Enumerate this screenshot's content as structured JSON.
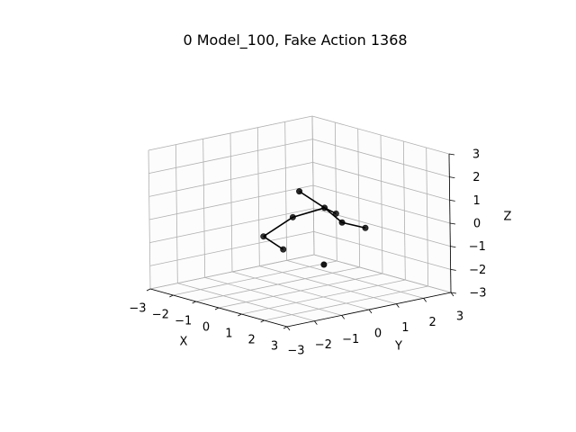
{
  "chart_data": {
    "type": "scatter",
    "title": "0 Model_100, Fake Action 1368",
    "xlabel": "X",
    "ylabel": "Y",
    "zlabel": "Z",
    "xlim": [
      -3,
      3
    ],
    "ylim": [
      -3,
      3
    ],
    "zlim": [
      -3,
      3
    ],
    "xticks": [
      "−3",
      "−2",
      "−1",
      "0",
      "1",
      "2",
      "3"
    ],
    "yticks": [
      "−3",
      "−2",
      "−1",
      "0",
      "1",
      "2",
      "3"
    ],
    "zticks": [
      "−3",
      "−2",
      "−1",
      "0",
      "1",
      "2",
      "3"
    ],
    "grid": true,
    "joints": [
      {
        "x": 0.4,
        "y": 1.0,
        "z": 0.2
      },
      {
        "x": 0.5,
        "y": 0.5,
        "z": 0.6
      },
      {
        "x": -0.3,
        "y": 0.0,
        "z": 0.1
      },
      {
        "x": -1.0,
        "y": -0.5,
        "z": -0.8
      },
      {
        "x": -0.5,
        "y": -0.2,
        "z": -1.3
      },
      {
        "x": 0.9,
        "y": 0.8,
        "z": 0.0
      },
      {
        "x": 1.2,
        "y": 1.4,
        "z": -0.3
      },
      {
        "x": 0.0,
        "y": 0.0,
        "z": 1.3
      },
      {
        "x": 0.8,
        "y": 0.2,
        "z": -1.7
      }
    ],
    "bones": [
      [
        2,
        1
      ],
      [
        1,
        0
      ],
      [
        1,
        5
      ],
      [
        5,
        6
      ],
      [
        2,
        3
      ],
      [
        3,
        4
      ],
      [
        1,
        7
      ]
    ]
  }
}
